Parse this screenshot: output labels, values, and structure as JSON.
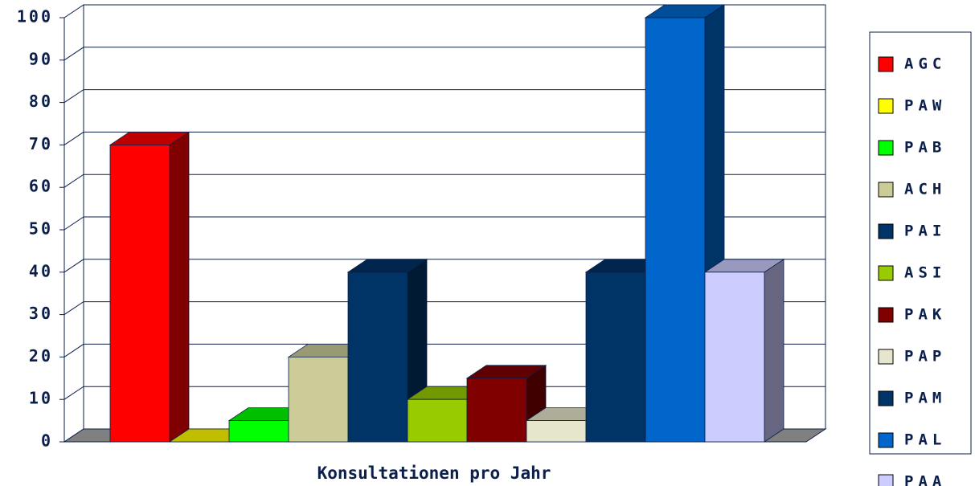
{
  "chart_data": {
    "type": "bar3d",
    "xlabel": "Konsultationen pro Jahr",
    "ylim": [
      0,
      100
    ],
    "yticks": [
      0,
      10,
      20,
      30,
      40,
      50,
      60,
      70,
      80,
      90,
      100
    ],
    "grid": true,
    "legend": "right",
    "series": [
      {
        "name": "AGC",
        "color": "#ff0000",
        "values": [
          70
        ]
      },
      {
        "name": "PAW",
        "color": "#ffff00",
        "values": [
          0
        ]
      },
      {
        "name": "PAB",
        "color": "#00ff00",
        "values": [
          5
        ]
      },
      {
        "name": "ACH",
        "color": "#cccc99",
        "values": [
          20
        ]
      },
      {
        "name": "PAI",
        "color": "#003366",
        "values": [
          40
        ]
      },
      {
        "name": "ASI",
        "color": "#99cc00",
        "values": [
          10
        ]
      },
      {
        "name": "PAK",
        "color": "#800000",
        "values": [
          15
        ]
      },
      {
        "name": "PAP",
        "color": "#e6e6cc",
        "values": [
          5
        ]
      },
      {
        "name": "PAM",
        "color": "#003366",
        "values": [
          40
        ]
      },
      {
        "name": "PAL",
        "color": "#0066cc",
        "values": [
          100
        ]
      },
      {
        "name": "PAA",
        "color": "#ccccff",
        "values": [
          40
        ]
      }
    ]
  }
}
